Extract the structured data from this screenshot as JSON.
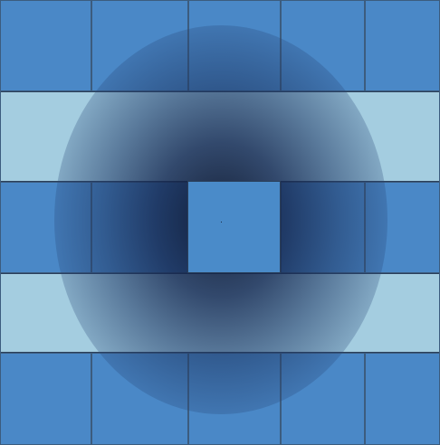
{
  "colors": {
    "tile": "#4a88c7",
    "bar": "#a4cde0",
    "center": "#4a8bc9",
    "grid_line": "#3c5c7e",
    "shadow": "#0e1830"
  },
  "grid": {
    "columns": 5,
    "tile_rows": 3,
    "band_rows": 2
  }
}
